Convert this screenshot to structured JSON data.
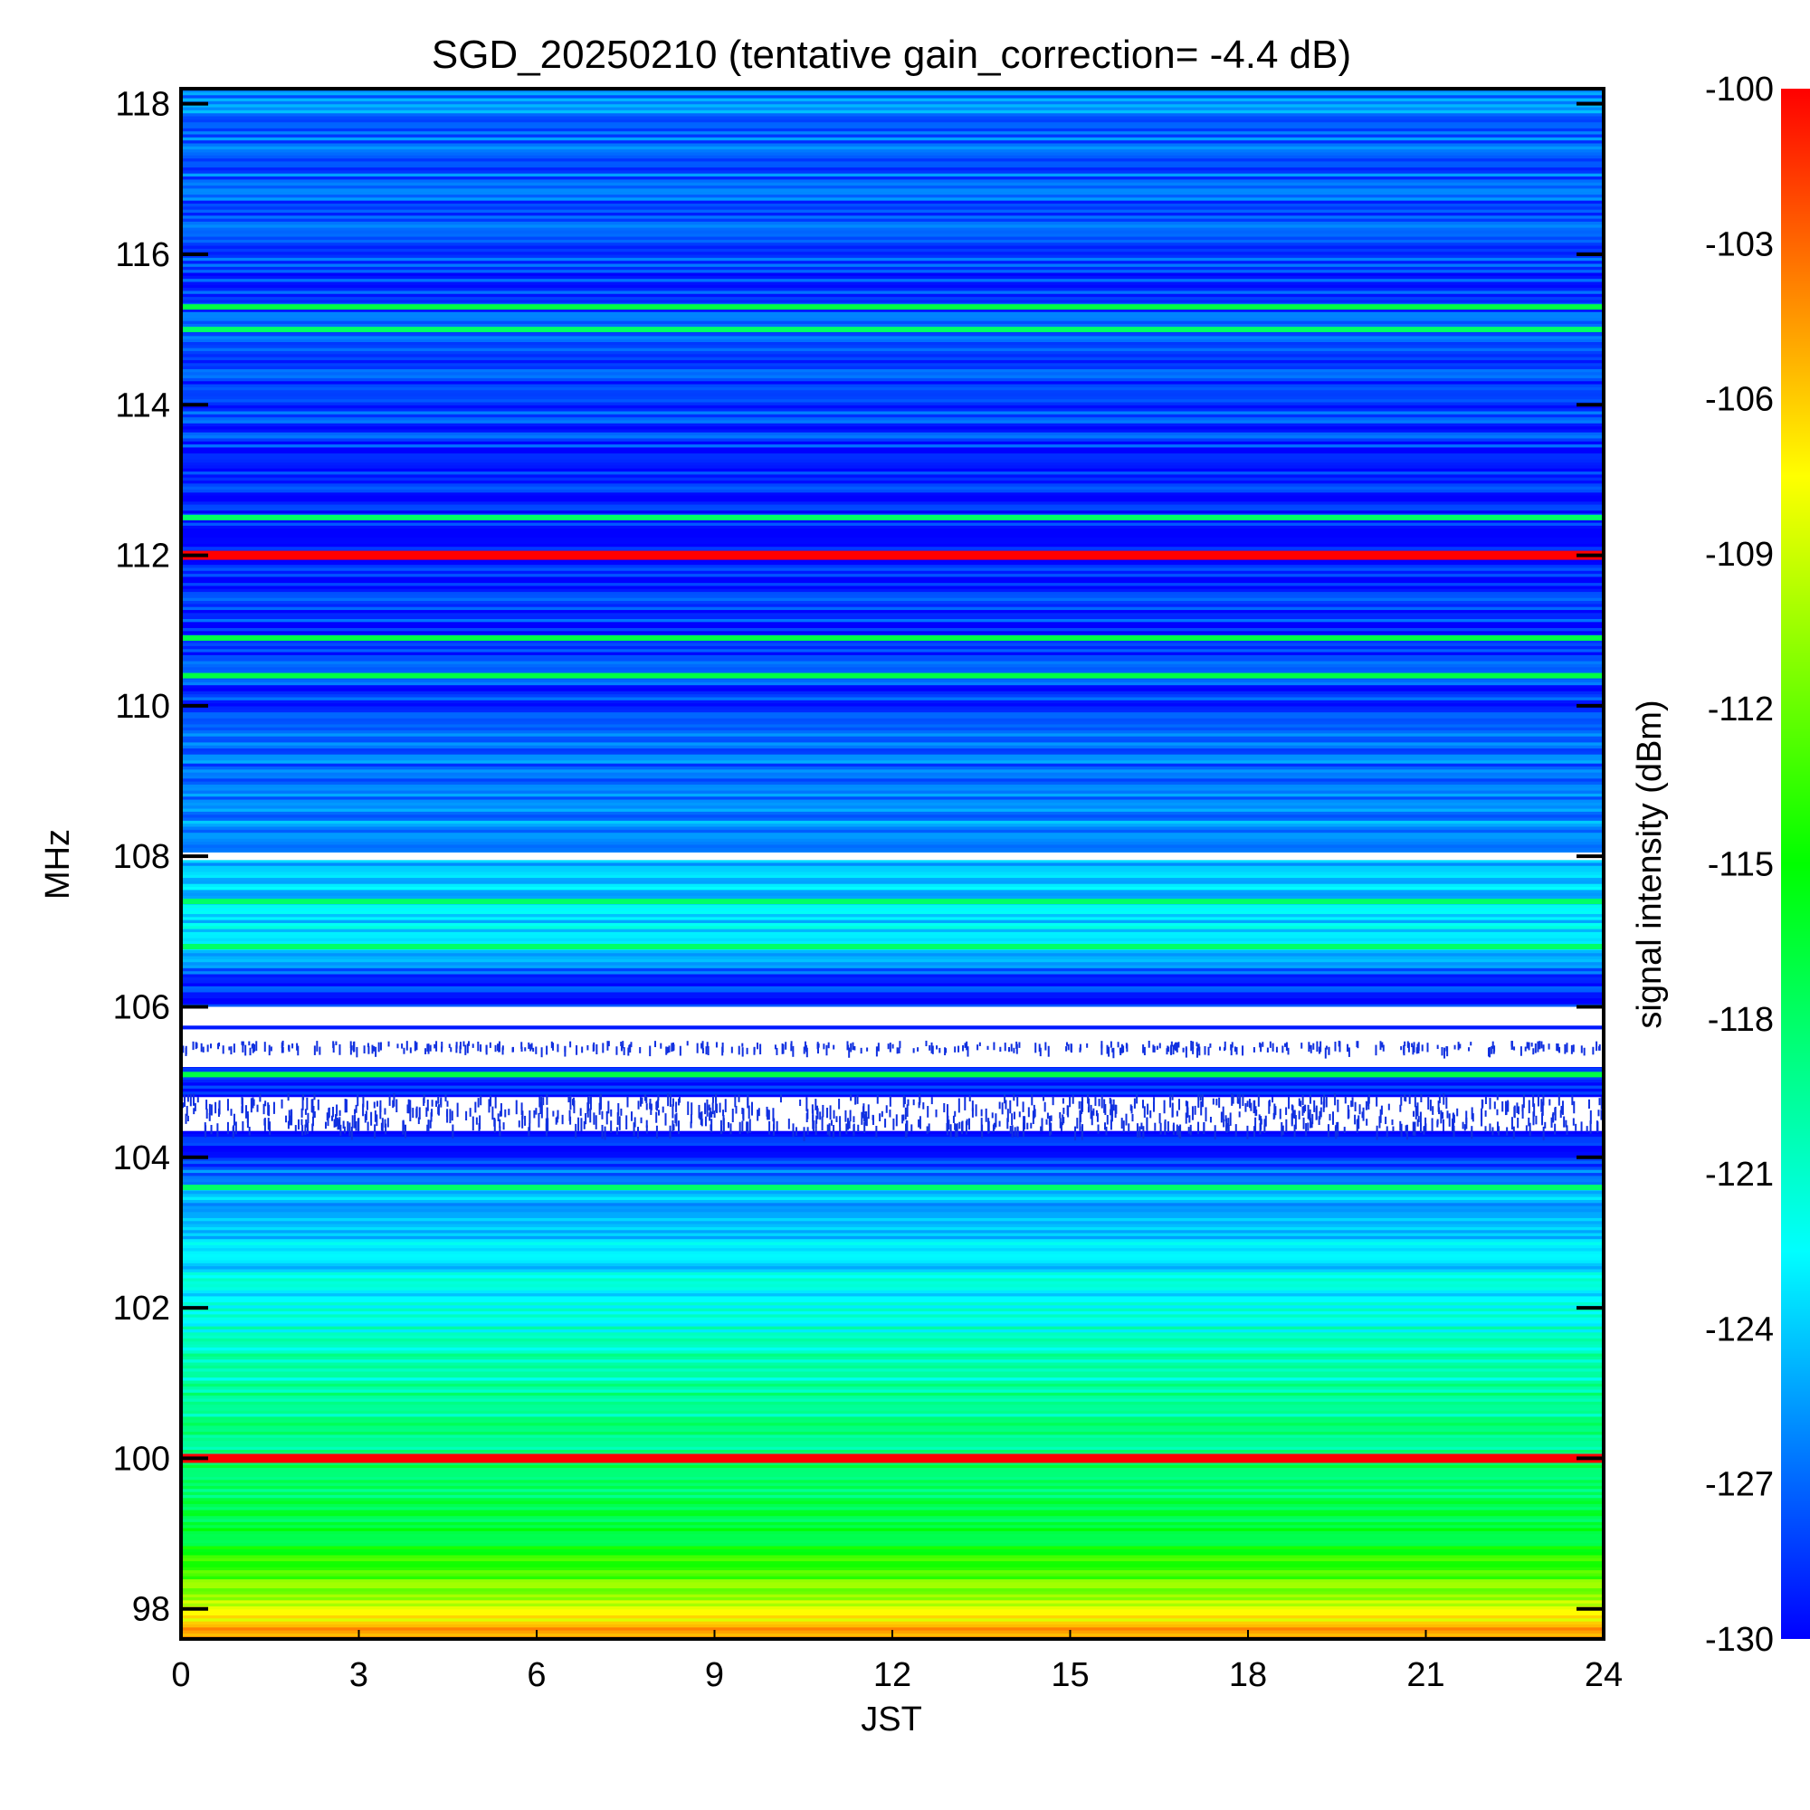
{
  "chart_data": {
    "type": "heatmap",
    "title": "SGD_20250210 (tentative gain_correction= -4.4 dB)",
    "xlabel": "JST",
    "ylabel": "MHz",
    "colorbar_label": "signal intensity (dBm)",
    "xlim": [
      0,
      24
    ],
    "ylim": [
      97.6,
      118.2
    ],
    "x_ticks": [
      0,
      3,
      6,
      9,
      12,
      15,
      18,
      21,
      24
    ],
    "y_ticks": [
      98,
      100,
      102,
      104,
      106,
      108,
      110,
      112,
      114,
      116,
      118
    ],
    "colorbar_range": [
      -130,
      -100
    ],
    "colorbar_ticks": [
      -100,
      -103,
      -106,
      -109,
      -112,
      -115,
      -118,
      -121,
      -124,
      -127,
      -130
    ],
    "colormap": [
      "#0000ff",
      "#0080ff",
      "#00ffff",
      "#00ff80",
      "#00ff00",
      "#80ff00",
      "#ffff00",
      "#ff8000",
      "#ff0000"
    ],
    "intensity_profile": [
      {
        "mhz": 97.6,
        "dbm": -104
      },
      {
        "mhz": 98.0,
        "dbm": -109
      },
      {
        "mhz": 98.5,
        "dbm": -113
      },
      {
        "mhz": 99.0,
        "dbm": -117
      },
      {
        "mhz": 100.5,
        "dbm": -119
      },
      {
        "mhz": 101.5,
        "dbm": -121
      },
      {
        "mhz": 102.5,
        "dbm": -123
      },
      {
        "mhz": 103.5,
        "dbm": -125
      },
      {
        "mhz": 104.2,
        "dbm": -129
      },
      {
        "mhz": 106.3,
        "dbm": -129
      },
      {
        "mhz": 107.0,
        "dbm": -123
      },
      {
        "mhz": 108.0,
        "dbm": -125
      },
      {
        "mhz": 110.0,
        "dbm": -128
      },
      {
        "mhz": 112.0,
        "dbm": -129
      },
      {
        "mhz": 114.0,
        "dbm": -128
      },
      {
        "mhz": 116.0,
        "dbm": -128
      },
      {
        "mhz": 118.2,
        "dbm": -126
      }
    ],
    "strong_lines": [
      {
        "mhz": 100.0,
        "dbm": -100
      },
      {
        "mhz": 112.0,
        "dbm": -100
      },
      {
        "mhz": 105.1,
        "dbm": -117
      },
      {
        "mhz": 103.6,
        "dbm": -118
      },
      {
        "mhz": 107.4,
        "dbm": -118
      },
      {
        "mhz": 106.8,
        "dbm": -118
      },
      {
        "mhz": 110.4,
        "dbm": -117
      },
      {
        "mhz": 110.9,
        "dbm": -117
      },
      {
        "mhz": 112.5,
        "dbm": -118
      },
      {
        "mhz": 115.3,
        "dbm": -117
      },
      {
        "mhz": 115.0,
        "dbm": -118
      }
    ],
    "blank_bands": [
      {
        "from_mhz": 105.2,
        "to_mhz": 105.7
      },
      {
        "from_mhz": 105.75,
        "to_mhz": 106.0
      },
      {
        "from_mhz": 104.35,
        "to_mhz": 104.8
      },
      {
        "from_mhz": 107.95,
        "to_mhz": 108.05
      }
    ]
  }
}
